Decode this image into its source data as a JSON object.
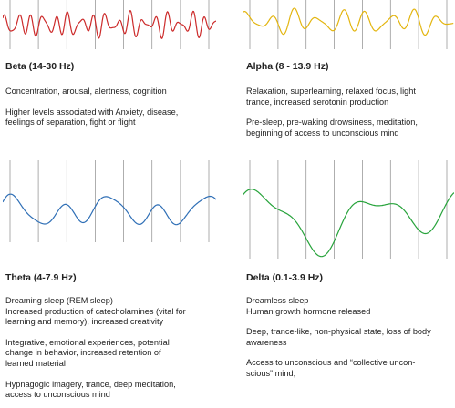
{
  "colors": {
    "beta": "#cc2a2a",
    "alpha": "#e3b50f",
    "theta": "#2f6fb6",
    "delta": "#27a33b",
    "gridline": "#9a9a9a",
    "text": "#222222"
  },
  "panels": {
    "beta": {
      "title": "Beta (14-30 Hz)",
      "paragraphs": [
        [
          "Concentration, arousal, alertness, cognition"
        ],
        [
          "Higher levels associated with Anxiety, disease,",
          "feelings of separation, fight or flight"
        ]
      ]
    },
    "alpha": {
      "title": "Alpha (8 - 13.9 Hz)",
      "paragraphs": [
        [
          "Relaxation, superlearning, relaxed focus, light",
          "trance, increased serotonin production"
        ],
        [
          "Pre-sleep, pre-waking drowsiness, meditation,",
          "beginning of access to unconscious mind"
        ]
      ]
    },
    "theta": {
      "title": "Theta (4-7.9 Hz)",
      "paragraphs": [
        [
          "Dreaming sleep (REM sleep)",
          "Increased production of catecholamines (vital for",
          "learning and memory), increased creativity"
        ],
        [
          "Integrative, emotional experiences, potential",
          "change in behavior, increased retention of",
          "learned material"
        ],
        [
          "Hypnagogic imagery, trance, deep meditation,",
          "access to unconscious mind"
        ]
      ]
    },
    "delta": {
      "title": "Delta (0.1-3.9 Hz)",
      "paragraphs": [
        [
          "Dreamless sleep",
          "Human growth hormone released"
        ],
        [
          "Deep, trance-like, non-physical state, loss of body",
          "awareness"
        ],
        [
          "Access to unconscious and “collective uncon-",
          "scious” mind,"
        ]
      ]
    }
  }
}
